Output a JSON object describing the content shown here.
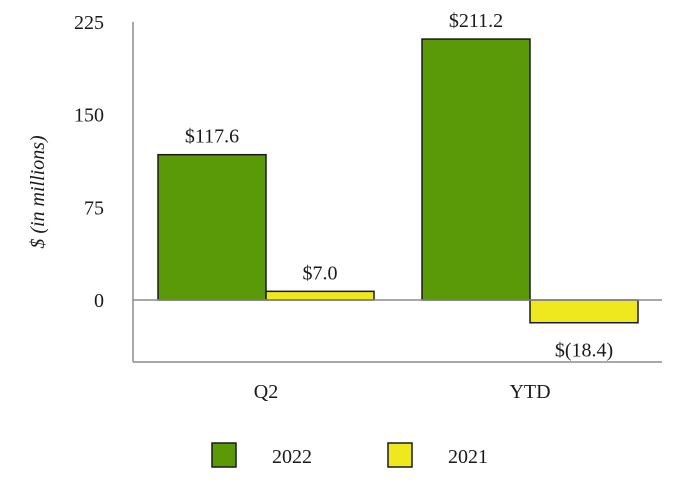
{
  "chart_data": {
    "type": "bar",
    "categories": [
      "Q2",
      "YTD"
    ],
    "series": [
      {
        "name": "2022",
        "values": [
          117.6,
          211.2
        ],
        "labels": [
          "$117.6",
          "$211.2"
        ],
        "color": "#5a9a08"
      },
      {
        "name": "2021",
        "values": [
          7.0,
          -18.4
        ],
        "labels": [
          "$7.0",
          "$(18.4)"
        ],
        "color": "#f0e81e"
      }
    ],
    "title": "",
    "xlabel": "",
    "ylabel": "$ (in millions)",
    "ylim": [
      -50,
      225
    ],
    "yticks": [
      0,
      75,
      150,
      225
    ],
    "ytick_labels": [
      "0",
      "75",
      "150",
      "225"
    ],
    "grid": false,
    "legend": "bottom"
  }
}
